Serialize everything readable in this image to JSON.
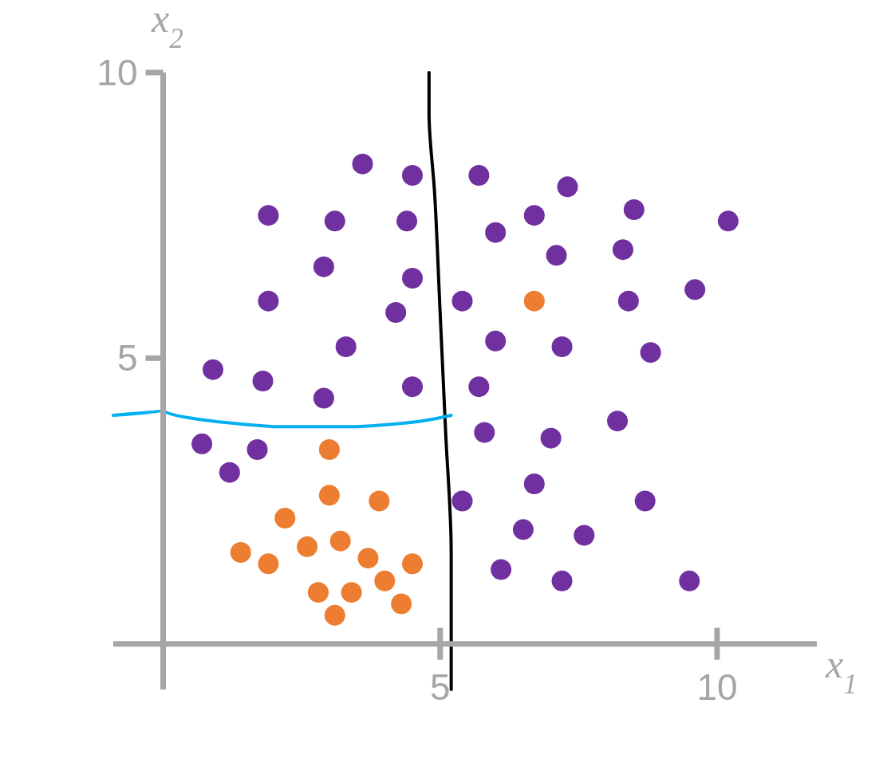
{
  "chart_data": {
    "type": "scatter",
    "xlabel": "x$_{1}$",
    "ylabel": "x$_{2}$",
    "xlim": [
      -0.9,
      11.8
    ],
    "ylim": [
      -0.8,
      10
    ],
    "xticks": [
      5,
      10
    ],
    "yticks": [
      5,
      10
    ],
    "grid": false,
    "series": [
      {
        "color": "#7030a0",
        "x": [
          3.6,
          4.5,
          5.7,
          7.3,
          8.5,
          10.2,
          1.9,
          3.1,
          4.4,
          6.7,
          6.0,
          7.1,
          8.3,
          2.9,
          4.5,
          1.9,
          5.4,
          8.4,
          9.6,
          4.2,
          3.3,
          6.0,
          7.2,
          8.8,
          0.9,
          1.8,
          2.9,
          4.5,
          5.7,
          5.8,
          7.0,
          8.2,
          0.7,
          1.7,
          1.2,
          5.4,
          6.7,
          8.7,
          6.5,
          7.6,
          6.1,
          7.2,
          9.5
        ],
        "values": [
          8.4,
          8.2,
          8.2,
          8.0,
          7.6,
          7.4,
          7.5,
          7.4,
          7.4,
          7.5,
          7.2,
          6.8,
          6.9,
          6.6,
          6.4,
          6.0,
          6.0,
          6.0,
          6.2,
          5.8,
          5.2,
          5.3,
          5.2,
          5.1,
          4.8,
          4.6,
          4.3,
          4.5,
          4.5,
          3.7,
          3.6,
          3.9,
          3.5,
          3.4,
          3.0,
          2.5,
          2.8,
          2.5,
          2.0,
          1.9,
          1.3,
          1.1,
          1.1
        ]
      },
      {
        "color": "#ed7d31",
        "x": [
          6.7,
          3.0,
          3.0,
          3.9,
          2.2,
          2.6,
          3.2,
          1.4,
          1.9,
          3.7,
          4.5,
          2.8,
          3.4,
          4.0,
          4.3,
          3.1
        ],
        "values": [
          6.0,
          3.4,
          2.6,
          2.5,
          2.2,
          1.7,
          1.8,
          1.6,
          1.4,
          1.5,
          1.4,
          0.9,
          0.9,
          1.1,
          0.7,
          0.5
        ]
      },
      {
        "type": "line",
        "color": "#000000",
        "x": [
          5.2,
          5.2,
          5.1,
          5.0,
          4.9,
          4.8,
          4.8
        ],
        "values": [
          -0.8,
          1.6,
          3.7,
          5.8,
          7.9,
          9.3,
          10
        ]
      },
      {
        "type": "line",
        "color": "#00b0f0",
        "x": [
          -0.9,
          0,
          2.0,
          3.5,
          5.2
        ],
        "values": [
          4.0,
          4.1,
          3.8,
          3.8,
          4.0
        ]
      }
    ]
  }
}
